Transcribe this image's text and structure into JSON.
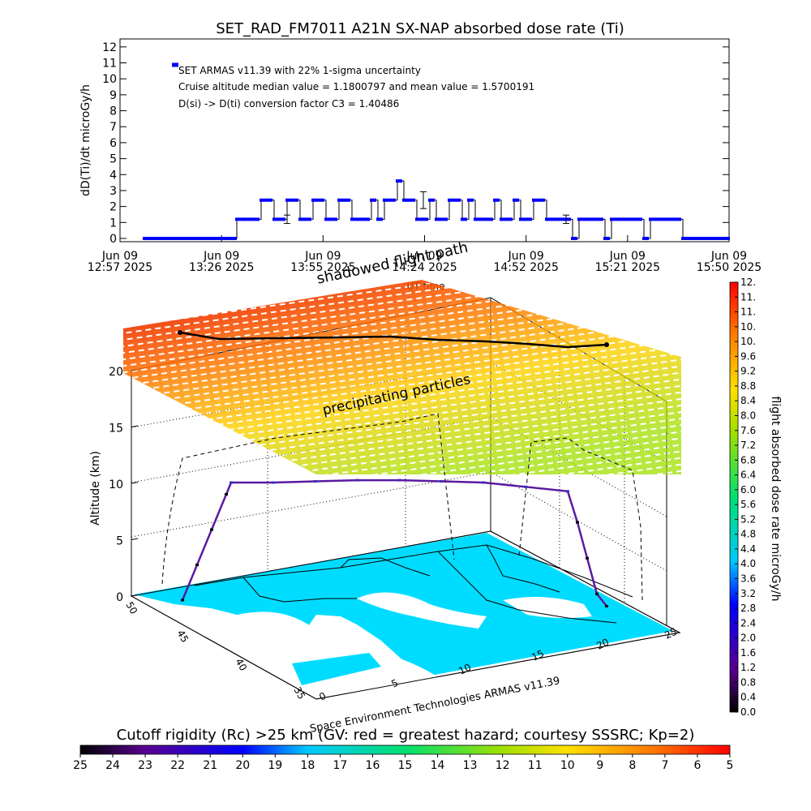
{
  "chart_data": [
    {
      "type": "line",
      "title": "SET_RAD_FM7011  A21N SX-NAP absorbed dose rate (Ti)",
      "ylabel": "dD(Ti)/dt microGy/h",
      "xlabel": "UT time",
      "ylim": [
        0,
        12
      ],
      "yticks": [
        "0",
        "1",
        "2",
        "3",
        "4",
        "5",
        "6",
        "7",
        "8",
        "9",
        "10",
        "11",
        "12"
      ],
      "xticks": [
        {
          "line1": "Jun 09",
          "line2": "12:57 2025"
        },
        {
          "line1": "Jun 09",
          "line2": "13:26 2025"
        },
        {
          "line1": "Jun 09",
          "line2": "13:55 2025"
        },
        {
          "line1": "Jun 09",
          "line2": "14:24 2025"
        },
        {
          "line1": "Jun 09",
          "line2": "14:52 2025"
        },
        {
          "line1": "Jun 09",
          "line2": "15:21 2025"
        },
        {
          "line1": "Jun 09",
          "line2": "15:50 2025"
        }
      ],
      "annotations": [
        "SET ARMAS v11.39 with 22% 1-sigma uncertainty",
        "Cruise altitude median value = 1.1800797 and mean value = 1.5700191",
        "D(si) -> D(ti) conversion factor C3 = 1.40486"
      ],
      "series_color": "#0000ff",
      "series": [
        {
          "x_minutes": [
            0,
            4,
            8,
            12,
            16,
            20,
            24,
            28,
            28.5,
            31,
            33,
            36,
            38,
            40,
            42,
            44,
            46,
            48,
            50,
            52,
            54,
            56,
            58,
            60,
            62,
            64,
            66,
            68,
            70,
            72,
            74,
            76,
            78,
            80,
            82,
            84,
            86,
            88,
            90,
            92,
            94,
            96,
            98,
            100,
            102,
            104,
            106,
            108,
            110,
            112,
            114,
            116,
            118,
            120,
            122,
            124,
            126,
            128,
            130,
            132,
            134,
            136,
            138,
            140,
            142,
            144,
            146,
            148,
            150,
            152,
            154,
            156,
            158,
            160,
            162,
            164,
            166,
            168,
            170,
            172,
            174,
            176,
            178,
            180
          ],
          "values": [
            0,
            0,
            0,
            0,
            0,
            0,
            0,
            0,
            1.2,
            1.2,
            1.2,
            2.4,
            2.4,
            1.2,
            1.2,
            2.4,
            2.4,
            1.2,
            1.2,
            2.4,
            2.4,
            1.2,
            1.2,
            2.4,
            2.4,
            1.2,
            1.2,
            1.2,
            2.4,
            1.2,
            2.4,
            2.4,
            3.6,
            2.4,
            2.4,
            1.2,
            1.2,
            2.4,
            1.2,
            1.2,
            2.4,
            2.4,
            1.2,
            2.4,
            1.2,
            1.2,
            1.2,
            2.4,
            1.2,
            1.2,
            2.4,
            1.2,
            1.2,
            2.4,
            2.4,
            1.2,
            1.2,
            1.2,
            1.2,
            0,
            1.2,
            1.2,
            1.2,
            1.2,
            0,
            1.2,
            1.2,
            1.2,
            1.2,
            1.2,
            0,
            1.2,
            1.2,
            1.2,
            1.2,
            1.2,
            0,
            0,
            0,
            0,
            0,
            0,
            0,
            0
          ]
        }
      ],
      "error_bars_x_minutes": [
        44,
        86,
        130
      ],
      "error_bars_y": [
        1.2,
        2.4,
        1.2
      ],
      "error_bar_pct": 22
    },
    {
      "type": "3d-trajectory",
      "zlabel": "Altitude (km)",
      "zticks": [
        "0",
        "5",
        "10",
        "15",
        "20"
      ],
      "lat_ticks": [
        "35",
        "40",
        "45",
        "50"
      ],
      "lon_ticks": [
        "0",
        "5",
        "10",
        "15",
        "20",
        "25"
      ],
      "labels": {
        "shadowed": "shadowed flight path",
        "precip": "precipitating particles",
        "credit": "Space Environment Technologies ARMAS v11.39"
      },
      "flight_altitude_km": [
        0,
        3,
        6,
        9,
        10,
        10,
        10.1,
        10.2,
        10.2,
        10.1,
        10,
        9.8,
        9.6,
        7,
        4,
        1,
        0
      ],
      "right_colorbar": {
        "label": "flight absorbed dose rate microGy/h",
        "ticks": [
          "0.0",
          "0.4",
          "0.8",
          "1.2",
          "1.6",
          "2.0",
          "2.4",
          "2.8",
          "3.2",
          "3.6",
          "4.0",
          "4.4",
          "4.8",
          "5.2",
          "5.6",
          "6.0",
          "6.4",
          "6.8",
          "7.2",
          "7.6",
          "8.0",
          "8.4",
          "8.8",
          "9.2",
          "9.6",
          "10.",
          "10.",
          "11.",
          "11.",
          "12."
        ]
      },
      "bottom_colorbar": {
        "label": "Cutoff rigidity (Rc) >25 km (GV: red = greatest hazard; courtesy SSSRC; Kp=2)",
        "ticks": [
          "25",
          "24",
          "23",
          "22",
          "21",
          "20",
          "19",
          "18",
          "17",
          "16",
          "15",
          "14",
          "13",
          "12",
          "11",
          "10",
          "9",
          "8",
          "7",
          "6",
          "5"
        ]
      }
    }
  ]
}
